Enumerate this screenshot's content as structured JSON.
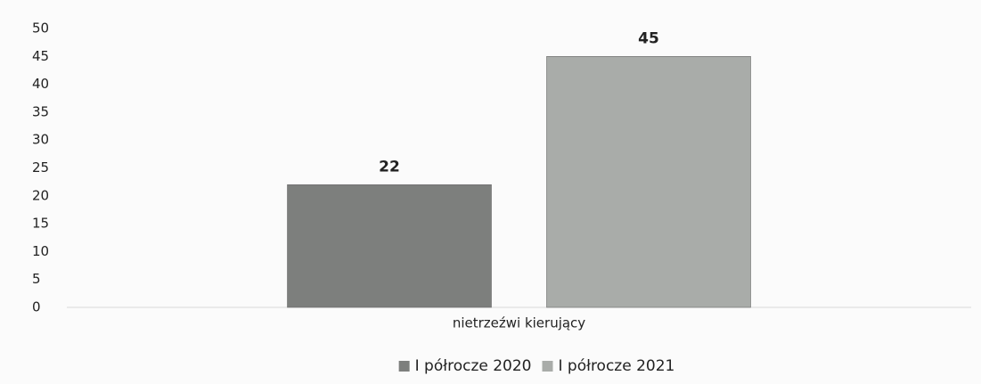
{
  "chart_data": {
    "type": "bar",
    "categories": [
      "nietrzeźwi kierujący"
    ],
    "series": [
      {
        "name": "I półrocze 2020",
        "color": "#7d7f7d",
        "values": [
          22
        ]
      },
      {
        "name": "I półrocze 2021",
        "color": "#a9aca9",
        "values": [
          45
        ]
      }
    ],
    "ylim": [
      0,
      50
    ],
    "yticks": [
      0,
      5,
      10,
      15,
      20,
      25,
      30,
      35,
      40,
      45,
      50
    ],
    "grid": false,
    "legend": "bottom"
  }
}
